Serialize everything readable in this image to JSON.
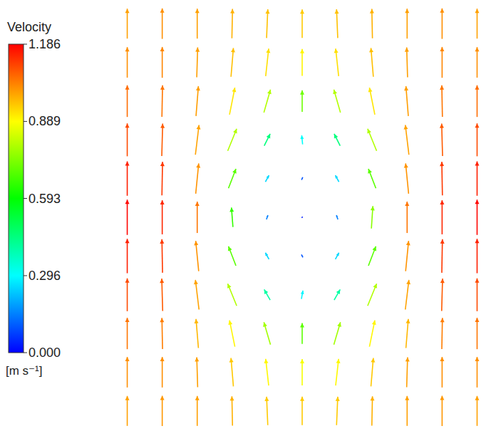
{
  "chart_data": {
    "type": "vector",
    "tick_labels": false,
    "x": [
      0,
      1,
      2,
      3,
      4,
      5,
      6,
      7,
      8,
      9,
      10
    ],
    "y": [
      0,
      1,
      2,
      3,
      4,
      5,
      6,
      7,
      8,
      9,
      10
    ],
    "u": [
      [
        0,
        0,
        0,
        -0.02,
        -0.04,
        0,
        0.04,
        0.02,
        0,
        0,
        0
      ],
      [
        0,
        0,
        -0.03,
        -0.08,
        -0.1,
        0,
        0.1,
        0.08,
        0.03,
        0,
        0
      ],
      [
        0,
        -0.02,
        -0.08,
        -0.18,
        -0.22,
        0,
        0.22,
        0.18,
        0.08,
        0.02,
        0
      ],
      [
        0,
        -0.03,
        -0.12,
        -0.3,
        -0.2,
        0.05,
        0.2,
        0.3,
        0.12,
        0.03,
        0
      ],
      [
        0,
        -0.02,
        -0.1,
        -0.25,
        -0.12,
        -0.05,
        0.12,
        0.25,
        0.1,
        0.02,
        0
      ],
      [
        0,
        0,
        0,
        -0.05,
        0.05,
        0.02,
        -0.05,
        0.05,
        0,
        0,
        0
      ],
      [
        0,
        0.02,
        0.1,
        0.25,
        0.12,
        0.04,
        -0.12,
        -0.25,
        -0.1,
        -0.02,
        0
      ],
      [
        0,
        0.03,
        0.12,
        0.3,
        0.2,
        -0.03,
        -0.2,
        -0.3,
        -0.12,
        -0.03,
        0
      ],
      [
        0,
        0.02,
        0.08,
        0.18,
        0.22,
        0,
        -0.22,
        -0.18,
        -0.08,
        -0.02,
        0
      ],
      [
        0,
        0,
        0.03,
        0.08,
        0.1,
        0,
        -0.1,
        -0.08,
        -0.03,
        0,
        0
      ],
      [
        0,
        0,
        0,
        0.02,
        0.04,
        0,
        -0.04,
        -0.02,
        0,
        0,
        0
      ]
    ],
    "v": [
      [
        1.0,
        1.01,
        1.0,
        0.98,
        0.95,
        0.95,
        0.95,
        0.98,
        1.0,
        1.01,
        1.0
      ],
      [
        1.02,
        1.02,
        1.0,
        0.95,
        0.89,
        0.88,
        0.89,
        0.95,
        1.0,
        1.02,
        1.02
      ],
      [
        1.05,
        1.04,
        0.97,
        0.88,
        0.75,
        0.7,
        0.75,
        0.88,
        0.97,
        1.04,
        1.05
      ],
      [
        1.1,
        1.08,
        0.99,
        0.74,
        0.35,
        0.28,
        0.35,
        0.74,
        0.99,
        1.08,
        1.1
      ],
      [
        1.15,
        1.12,
        1.01,
        0.65,
        0.22,
        0.09,
        0.22,
        0.65,
        1.01,
        1.12,
        1.15
      ],
      [
        1.18,
        1.14,
        1.05,
        0.65,
        0.14,
        0.03,
        0.14,
        0.75,
        1.05,
        1.14,
        1.18
      ],
      [
        1.15,
        1.12,
        1.01,
        0.65,
        0.22,
        0.09,
        0.22,
        0.65,
        1.01,
        1.12,
        1.15
      ],
      [
        1.1,
        1.08,
        0.99,
        0.74,
        0.4,
        0.3,
        0.4,
        0.74,
        0.99,
        1.08,
        1.1
      ],
      [
        1.06,
        1.05,
        1.0,
        0.9,
        0.77,
        0.72,
        0.77,
        0.9,
        1.0,
        1.05,
        1.06
      ],
      [
        1.02,
        1.03,
        1.0,
        0.96,
        0.92,
        0.9,
        0.92,
        0.96,
        1.0,
        1.03,
        1.02
      ],
      [
        1.0,
        1.02,
        1.0,
        0.98,
        0.96,
        0.95,
        0.96,
        0.98,
        1.0,
        1.02,
        1.0
      ]
    ],
    "colorbar": {
      "title": "Velocity",
      "unit": "[m s⁻¹]",
      "range": [
        0,
        1.186
      ],
      "ticks": [
        {
          "value": 0,
          "label": "0.000"
        },
        0.296,
        0.593,
        0.889,
        1.186
      ],
      "colors": [
        "#0000ff",
        "#00ffff",
        "#00ff00",
        "#ffff00",
        "#ff0000"
      ]
    }
  }
}
